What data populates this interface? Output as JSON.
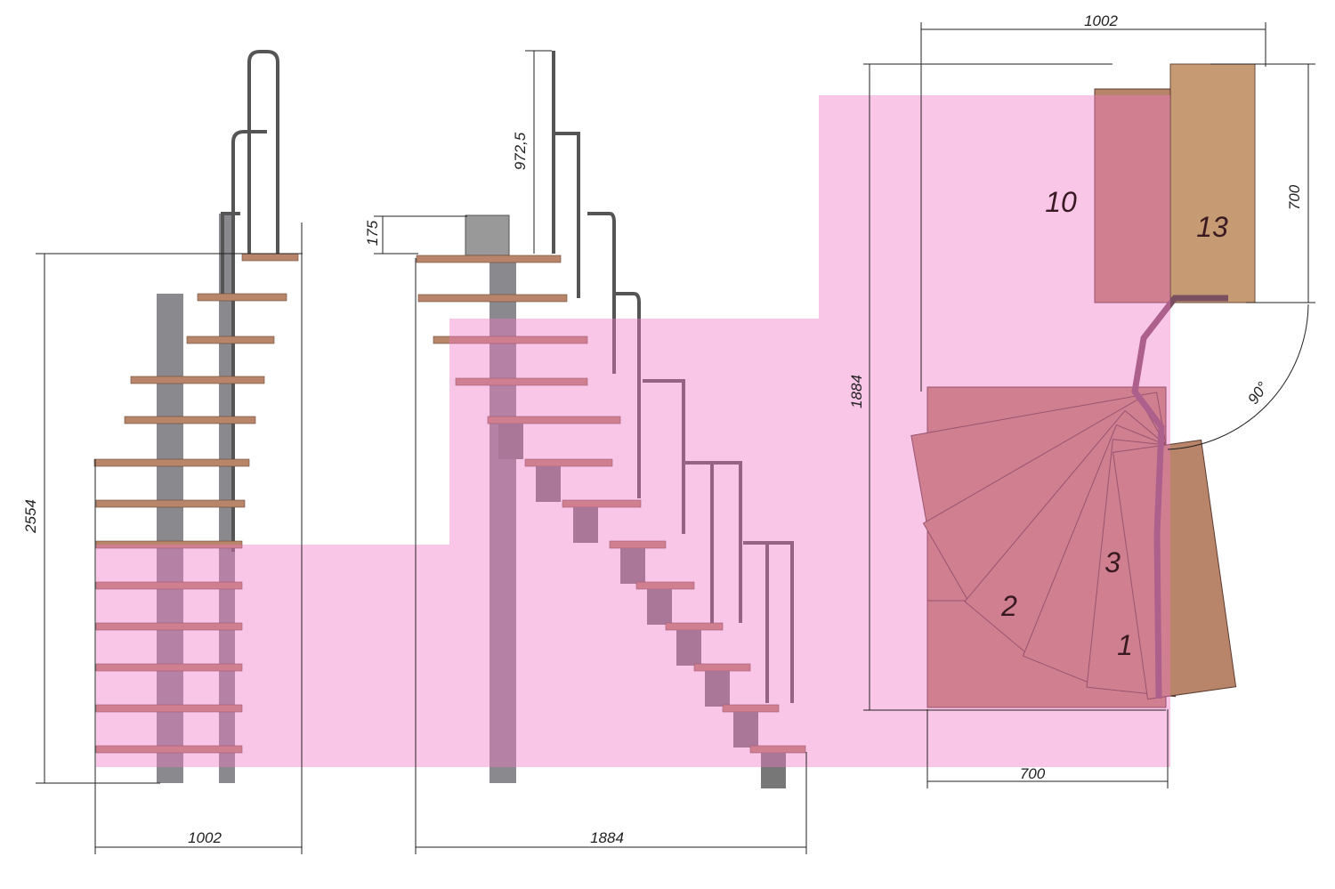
{
  "left_view": {
    "height": "2554",
    "width": "1002"
  },
  "front_view": {
    "rail_height": "972,5",
    "platform": "175",
    "width": "1884"
  },
  "plan_view": {
    "top_width": "1002",
    "side": "700",
    "depth": "1884",
    "angle": "90°",
    "bottom_width": "700",
    "step_numbers": [
      "10",
      "13",
      "3",
      "2",
      "1"
    ]
  }
}
